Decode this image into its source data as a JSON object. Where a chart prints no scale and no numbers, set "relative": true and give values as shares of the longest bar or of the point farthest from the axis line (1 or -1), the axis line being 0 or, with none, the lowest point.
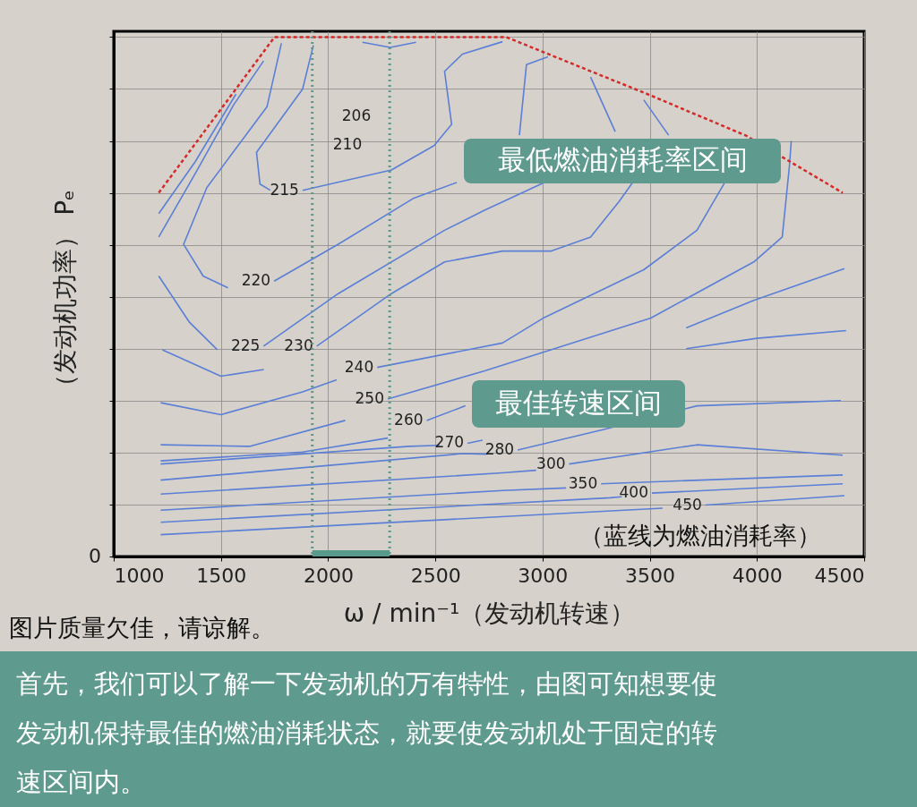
{
  "chart_data": {
    "type": "line",
    "relative": true,
    "xlabel": "ω / min⁻¹（发动机转速）",
    "ylabel": "（发动机功率） Pₑ",
    "xlim": [
      1000,
      4500
    ],
    "xticks": [
      1000,
      1500,
      2000,
      2500,
      3000,
      3500,
      4000,
      4500
    ],
    "grid": true,
    "marker": "none",
    "series": [
      {
        "type": "area",
        "color": "#5a9a8c",
        "x": [
          1926,
          2287
        ],
        "values": [
          0.012,
          0.012
        ]
      },
      {
        "color": "#d42a2a",
        "line_style": "dashed",
        "x": [
          1210,
          1750,
          2830,
          3490,
          3950,
          4400
        ],
        "values": [
          0.7,
          1.0,
          1.0,
          0.89,
          0.81,
          0.7
        ]
      },
      {
        "color": "#5b7fd6",
        "x": [
          2160,
          2290,
          2410
        ],
        "values": [
          0.99,
          0.98,
          0.99
        ]
      },
      {
        "color": "#5b7fd6",
        "x": [
          1210,
          1380,
          1570
        ],
        "values": [
          0.66,
          0.76,
          0.89
        ]
      },
      {
        "color": "#5b7fd6",
        "x": [
          1210,
          1384,
          1560,
          1699
        ],
        "values": [
          0.615,
          0.74,
          0.87,
          0.954
        ]
      },
      {
        "color": "#5b7fd6",
        "x": [
          1782,
          1715,
          1434,
          1326,
          1417,
          1533
        ],
        "values": [
          0.988,
          0.866,
          0.71,
          0.601,
          0.54,
          0.517
        ]
      },
      {
        "name": "220",
        "color": "#5b7fd6",
        "x": [
          1748,
          2047,
          2400,
          2600
        ],
        "values": [
          0.53,
          0.601,
          0.69,
          0.72
        ]
      },
      {
        "color": "#5b7fd6",
        "x": [
          1931,
          1881,
          1666,
          1682,
          1730
        ],
        "values": [
          0.984,
          0.9,
          0.778,
          0.717,
          0.705
        ]
      },
      {
        "name": "215",
        "color": "#5b7fd6",
        "x": [
          1881,
          2295,
          2494,
          2576,
          2543,
          2626,
          2813
        ],
        "values": [
          0.705,
          0.744,
          0.791,
          0.832,
          0.934,
          0.967,
          0.991
        ]
      },
      {
        "color": "#5b7fd6",
        "x": [
          2892,
          2925,
          3025
        ],
        "values": [
          0.811,
          0.947,
          0.962
        ]
      },
      {
        "color": "#5b7fd6",
        "x": [
          3339,
          3224
        ],
        "values": [
          0.818,
          0.923
        ]
      },
      {
        "color": "#5b7fd6",
        "x": [
          3588,
          3472
        ],
        "values": [
          0.811,
          0.879
        ]
      },
      {
        "color": "#5b7fd6",
        "x": [
          1210,
          1351,
          1483
        ],
        "values": [
          0.54,
          0.452,
          0.398
        ]
      },
      {
        "name": "225",
        "color": "#5b7fd6",
        "x": [
          1699,
          2047,
          2543,
          2727,
          3008
        ],
        "values": [
          0.405,
          0.506,
          0.628,
          0.666,
          0.72
        ]
      },
      {
        "color": "#5b7fd6",
        "x": [
          1227,
          1500,
          1700
        ],
        "values": [
          0.398,
          0.347,
          0.36
        ]
      },
      {
        "name": "230",
        "color": "#5b7fd6",
        "x": [
          1947,
          2295,
          2543,
          2813,
          3041,
          3224,
          3356,
          3420
        ],
        "values": [
          0.405,
          0.506,
          0.567,
          0.588,
          0.588,
          0.615,
          0.683,
          0.72
        ]
      },
      {
        "color": "#5b7fd6",
        "x": [
          1219,
          1500,
          1881,
          2040
        ],
        "values": [
          0.296,
          0.273,
          0.317,
          0.34
        ]
      },
      {
        "name": "240",
        "color": "#5b7fd6",
        "x": [
          2229,
          2813,
          3008,
          3472,
          3720,
          3850
        ],
        "values": [
          0.364,
          0.411,
          0.46,
          0.552,
          0.628,
          0.72
        ]
      },
      {
        "color": "#5b7fd6",
        "x": [
          1219,
          1633,
          2080
        ],
        "values": [
          0.215,
          0.212,
          0.262
        ]
      },
      {
        "name": "250",
        "color": "#5b7fd6",
        "x": [
          2278,
          2727,
          3505,
          3985,
          4118,
          4151,
          4160
        ],
        "values": [
          0.303,
          0.357,
          0.459,
          0.567,
          0.615,
          0.75,
          0.8
        ]
      },
      {
        "color": "#5b7fd6",
        "x": [
          1219,
          1881,
          2278
        ],
        "values": [
          0.184,
          0.201,
          0.228
        ]
      },
      {
        "name": "260",
        "color": "#5b7fd6",
        "x": [
          2460,
          2640
        ],
        "values": [
          0.262,
          0.29
        ]
      },
      {
        "color": "#5b7fd6",
        "x": [
          3670,
          3985,
          4408
        ],
        "values": [
          0.44,
          0.493,
          0.554
        ]
      },
      {
        "color": "#5b7fd6",
        "x": [
          1219,
          2378,
          2520
        ],
        "values": [
          0.178,
          0.212,
          0.214
        ]
      },
      {
        "name": "270",
        "color": "#5b7fd6",
        "x": [
          2650,
          2720
        ],
        "values": [
          0.218,
          0.224
        ]
      },
      {
        "color": "#5b7fd6",
        "x": [
          3670,
          4000,
          4416
        ],
        "values": [
          0.4,
          0.42,
          0.435
        ]
      },
      {
        "color": "#5b7fd6",
        "x": [
          1219,
          2626,
          2740
        ],
        "values": [
          0.147,
          0.198,
          0.197
        ]
      },
      {
        "name": "280",
        "color": "#5b7fd6",
        "x": [
          2884,
          3290,
          3720,
          4391
        ],
        "values": [
          0.205,
          0.245,
          0.29,
          0.3
        ]
      },
      {
        "color": "#5b7fd6",
        "x": [
          1219,
          2813,
          2970
        ],
        "values": [
          0.12,
          0.161,
          0.166
        ]
      },
      {
        "name": "300",
        "color": "#5b7fd6",
        "x": [
          3124,
          3720,
          4400
        ],
        "values": [
          0.178,
          0.215,
          0.195
        ]
      },
      {
        "color": "#5b7fd6",
        "x": [
          1219,
          2813,
          3110
        ],
        "values": [
          0.089,
          0.127,
          0.132
        ]
      },
      {
        "name": "350",
        "color": "#5b7fd6",
        "x": [
          3273,
          4400
        ],
        "values": [
          0.14,
          0.157
        ]
      },
      {
        "color": "#5b7fd6",
        "x": [
          1219,
          3315,
          3370
        ],
        "values": [
          0.066,
          0.113,
          0.115
        ]
      },
      {
        "name": "400",
        "color": "#5b7fd6",
        "x": [
          3510,
          4400
        ],
        "values": [
          0.122,
          0.14
        ]
      },
      {
        "color": "#5b7fd6",
        "x": [
          1219,
          3560
        ],
        "values": [
          0.042,
          0.093
        ]
      },
      {
        "name": "450",
        "color": "#5b7fd6",
        "x": [
          3760,
          4408
        ],
        "values": [
          0.099,
          0.117
        ]
      }
    ],
    "ref_lines": [
      {
        "axis": "x",
        "value": 1926,
        "color": "#5a9a8c",
        "line_style": "dotted"
      },
      {
        "axis": "x",
        "value": 2287,
        "color": "#5a9a8c",
        "line_style": "dotted"
      }
    ],
    "annotations": [
      "206",
      "210",
      "0",
      "最低燃油消耗率区间",
      "最佳转速区间",
      "（蓝线为燃油消耗率）",
      "图片质量欠佳，请谅解。",
      "首先，我们可以了解一下发动机的万有特性，由图可知想要使发动机保持最佳的燃油消耗状态，就要使发动机处于固定的转速区间内。"
    ]
  }
}
